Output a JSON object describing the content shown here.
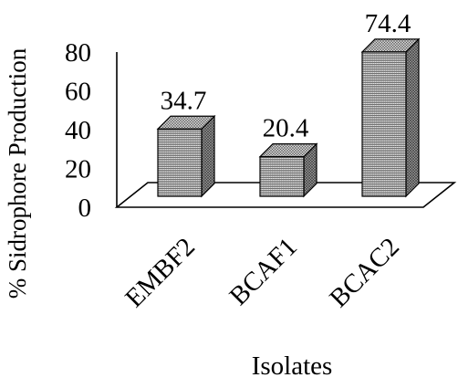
{
  "chart_data": {
    "type": "bar",
    "title": "",
    "xlabel": "Isolates",
    "ylabel": "% Sidrophore Production",
    "categories": [
      "EMBF2",
      "BCAF1",
      "BCAC2"
    ],
    "values": [
      34.7,
      20.4,
      74.4
    ],
    "data_labels": [
      "34.7",
      "20.4",
      "74.4"
    ],
    "ylim": [
      0,
      80
    ],
    "yticks": [
      0,
      20,
      40,
      60,
      80
    ],
    "ytick_labels": [
      "0",
      "20",
      "40",
      "60",
      "80"
    ],
    "style": "3d-column",
    "grid": false,
    "legend": "none",
    "colors": {
      "bar_face": "#d9d9d9",
      "bar_side": "#8c8c8c",
      "bar_top": "#bdbdbd",
      "floor": "#ffffff",
      "axis": "#000000"
    }
  }
}
